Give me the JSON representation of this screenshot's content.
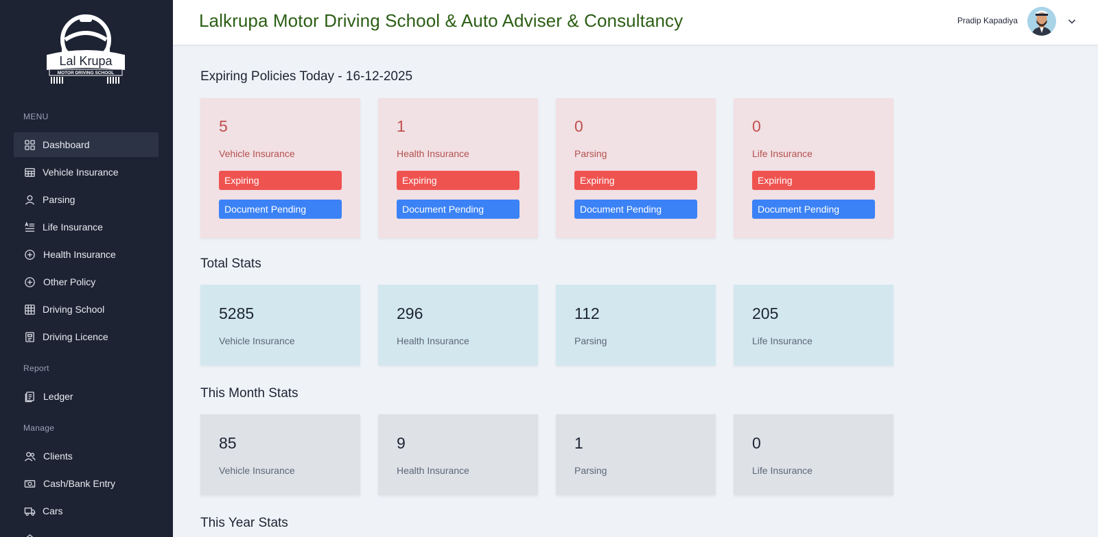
{
  "sidebar": {
    "logo": {
      "name": "Lal Krupa",
      "tagline": "MOTOR DRIVING SCHOOL"
    },
    "menu_heading": "MENU",
    "menu_items": [
      {
        "label": "Dashboard",
        "icon": "grid-icon"
      },
      {
        "label": "Vehicle Insurance",
        "icon": "calendar-grid-icon"
      },
      {
        "label": "Parsing",
        "icon": "user-icon"
      },
      {
        "label": "Life Insurance",
        "icon": "list-icon"
      },
      {
        "label": "Health Insurance",
        "icon": "plus-circle-icon"
      },
      {
        "label": "Other Policy",
        "icon": "plus-circle-icon"
      },
      {
        "label": "Driving School",
        "icon": "table-icon"
      },
      {
        "label": "Driving Licence",
        "icon": "document-icon"
      }
    ],
    "report_heading": "Report",
    "report_items": [
      {
        "label": "Ledger",
        "icon": "ledger-icon"
      }
    ],
    "manage_heading": "Manage",
    "manage_items": [
      {
        "label": "Clients",
        "icon": "users-icon"
      },
      {
        "label": "Cash/Bank Entry",
        "icon": "cash-icon"
      },
      {
        "label": "Cars",
        "icon": "truck-icon"
      }
    ]
  },
  "header": {
    "title": "Lalkrupa Motor Driving School & Auto Adviser & Consultancy",
    "user_name": "Pradip Kapadiya"
  },
  "expiring": {
    "title": "Expiring Policies Today - 16-12-2025",
    "cards": [
      {
        "count": "5",
        "label": "Vehicle Insurance",
        "expiring_label": "Expiring",
        "pending_label": "Document Pending"
      },
      {
        "count": "1",
        "label": "Health Insurance",
        "expiring_label": "Expiring",
        "pending_label": "Document Pending"
      },
      {
        "count": "0",
        "label": "Parsing",
        "expiring_label": "Expiring",
        "pending_label": "Document Pending"
      },
      {
        "count": "0",
        "label": "Life Insurance",
        "expiring_label": "Expiring",
        "pending_label": "Document Pending"
      }
    ]
  },
  "total_stats": {
    "title": "Total Stats",
    "cards": [
      {
        "count": "5285",
        "label": "Vehicle Insurance"
      },
      {
        "count": "296",
        "label": "Health Insurance"
      },
      {
        "count": "112",
        "label": "Parsing"
      },
      {
        "count": "205",
        "label": "Life Insurance"
      }
    ]
  },
  "month_stats": {
    "title": "This Month Stats",
    "cards": [
      {
        "count": "85",
        "label": "Vehicle Insurance"
      },
      {
        "count": "9",
        "label": "Health Insurance"
      },
      {
        "count": "1",
        "label": "Parsing"
      },
      {
        "count": "0",
        "label": "Life Insurance"
      }
    ]
  },
  "year_stats": {
    "title": "This Year Stats"
  },
  "colors": {
    "sidebar_bg": "#1d2333",
    "title_green": "#2b5e14",
    "expiring_red": "#ef5350",
    "pending_blue": "#3b82f6"
  }
}
